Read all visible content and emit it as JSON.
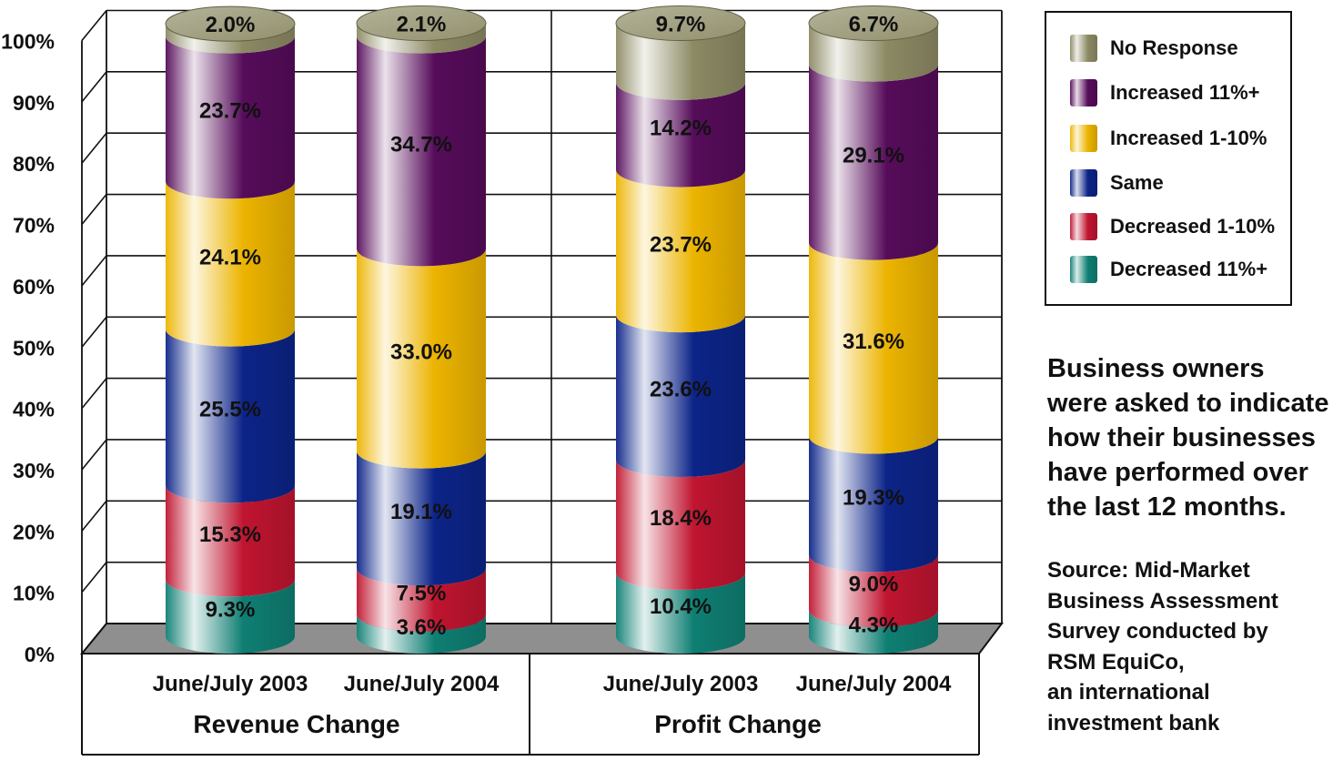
{
  "chart_data": {
    "type": "bar",
    "stacked": true,
    "style": "3d-cylinder",
    "y_ticks": [
      "0%",
      "10%",
      "20%",
      "30%",
      "40%",
      "50%",
      "60%",
      "70%",
      "80%",
      "90%",
      "100%"
    ],
    "ylim": [
      0,
      100
    ],
    "grid": true,
    "legend_position": "top-right",
    "groups": [
      {
        "label": "Revenue Change",
        "bars": [
          {
            "label": "June/July 2003",
            "values": [
              9.3,
              15.3,
              25.5,
              24.1,
              23.7,
              2.0
            ],
            "labels": [
              "9.3%",
              "15.3%",
              "25.5%",
              "24.1%",
              "23.7%",
              "2.0%"
            ]
          },
          {
            "label": "June/July 2004",
            "values": [
              3.6,
              7.5,
              19.1,
              33.0,
              34.7,
              2.1
            ],
            "labels": [
              "3.6%",
              "7.5%",
              "19.1%",
              "33.0%",
              "34.7%",
              "2.1%"
            ]
          }
        ]
      },
      {
        "label": "Profit Change",
        "bars": [
          {
            "label": "June/July 2003",
            "values": [
              10.4,
              18.4,
              23.6,
              23.7,
              14.2,
              9.7
            ],
            "labels": [
              "10.4%",
              "18.4%",
              "23.6%",
              "23.7%",
              "14.2%",
              "9.7%"
            ]
          },
          {
            "label": "June/July 2004",
            "values": [
              4.3,
              9.0,
              19.3,
              31.6,
              29.1,
              6.7
            ],
            "labels": [
              "4.3%",
              "9.0%",
              "19.3%",
              "31.6%",
              "29.1%",
              "6.7%"
            ]
          }
        ]
      }
    ],
    "series": [
      {
        "name": "Decreased 11%+",
        "color": "#0f7f73"
      },
      {
        "name": "Decreased 1-10%",
        "color": "#c01530"
      },
      {
        "name": "Same",
        "color": "#0c2488"
      },
      {
        "name": "Increased 1-10%",
        "color": "#ecb400"
      },
      {
        "name": "Increased 11%+",
        "color": "#560c5a"
      },
      {
        "name": "No Response",
        "color": "#8c8a64"
      }
    ]
  },
  "legend": {
    "items": [
      {
        "label": "No Response",
        "color": "#8c8a64"
      },
      {
        "label": "Increased 11%+",
        "color": "#560c5a"
      },
      {
        "label": "Increased 1-10%",
        "color": "#ecb400"
      },
      {
        "label": "Same",
        "color": "#0c2488"
      },
      {
        "label": "Decreased 1-10%",
        "color": "#c01530"
      },
      {
        "label": "Decreased 11%+",
        "color": "#0f7f73"
      }
    ]
  },
  "note": {
    "lines": [
      "Business owners",
      "were asked to indicate",
      "how their businesses",
      "have performed over",
      "the last 12 months."
    ]
  },
  "source": {
    "lines": [
      "Source: Mid-Market",
      "Business Assessment",
      "Survey conducted by",
      "RSM EquiCo,",
      "an international",
      "investment bank"
    ]
  }
}
